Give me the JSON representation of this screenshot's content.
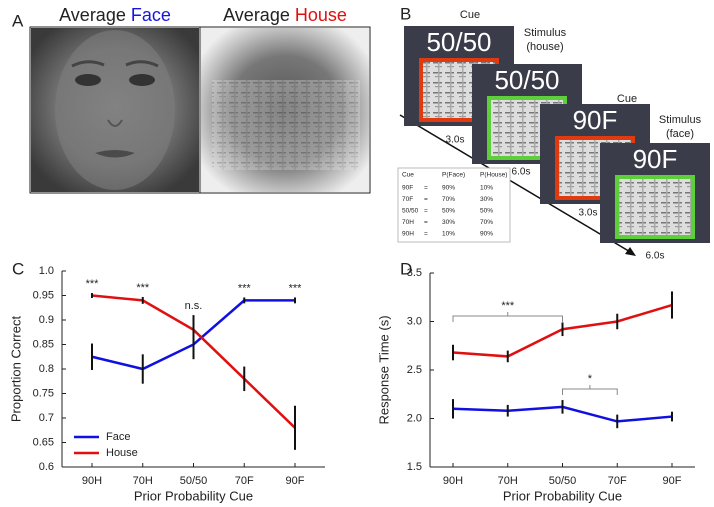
{
  "panel_labels": [
    "A",
    "B",
    "C",
    "D"
  ],
  "panel_a": {
    "titles": [
      {
        "word": "Average",
        "highlight": "Face"
      },
      {
        "word": "Average",
        "highlight": "House"
      }
    ]
  },
  "panel_b": {
    "screens": [
      "50/50",
      "50/50",
      "90F",
      "90F"
    ],
    "labels": [
      "Cue",
      "Stimulus",
      "(house)",
      "Cue",
      "Stimulus",
      "(face)"
    ],
    "times": [
      "3.0s",
      "6.0s",
      "3.0s",
      "6.0s"
    ],
    "table": {
      "header": [
        "Cue",
        "P(Face)",
        "P(House)"
      ],
      "rows": [
        [
          "90F",
          "=",
          "90%",
          "10%"
        ],
        [
          "70F",
          "=",
          "70%",
          "30%"
        ],
        [
          "50/50",
          "=",
          "50%",
          "50%"
        ],
        [
          "70H",
          "=",
          "30%",
          "70%"
        ],
        [
          "90H",
          "=",
          "10%",
          "90%"
        ]
      ]
    }
  },
  "chart_data": [
    {
      "type": "line",
      "xlabel": "Prior Probability Cue",
      "ylabel": "Proportion Correct",
      "categories": [
        "90H",
        "70H",
        "50/50",
        "70F",
        "90F"
      ],
      "series": [
        {
          "name": "Face",
          "color": "#1010e0",
          "values": [
            0.825,
            0.8,
            0.85,
            0.94,
            0.94
          ],
          "errors": [
            0.027,
            0.03,
            0.03,
            0.006,
            0.006
          ]
        },
        {
          "name": "House",
          "color": "#e01010",
          "values": [
            0.95,
            0.94,
            0.88,
            0.78,
            0.68
          ],
          "errors": [
            0.005,
            0.007,
            0.03,
            0.025,
            0.045
          ]
        }
      ],
      "ylim": [
        0.6,
        1.0
      ],
      "yticks": [
        0.6,
        0.65,
        0.7,
        0.75,
        0.8,
        0.85,
        0.9,
        0.95,
        {
          "value": 1.0,
          "label": "1.0"
        }
      ],
      "annotations": [
        "***",
        "***",
        "n.s.",
        "***",
        "***"
      ],
      "legend": "lower-left"
    },
    {
      "type": "line",
      "xlabel": "Prior Probability Cue",
      "ylabel": "Response Time (s)",
      "categories": [
        "90H",
        "70H",
        "50/50",
        "70F",
        "90F"
      ],
      "series": [
        {
          "name": "House",
          "color": "#e01010",
          "values": [
            2.68,
            2.64,
            2.92,
            3.0,
            3.17
          ],
          "errors": [
            0.08,
            0.06,
            0.07,
            0.08,
            0.14
          ]
        },
        {
          "name": "Face",
          "color": "#1010e0",
          "values": [
            2.1,
            2.08,
            2.12,
            1.97,
            2.02
          ],
          "errors": [
            0.1,
            0.06,
            0.07,
            0.07,
            0.05
          ]
        }
      ],
      "ylim": [
        1.5,
        3.5
      ],
      "yticks": [
        1.5,
        {
          "value": 2.0,
          "label": "2.0"
        },
        2.5,
        {
          "value": 3.0,
          "label": "3.0"
        },
        3.5
      ],
      "brackets": [
        "***",
        "*"
      ]
    }
  ]
}
